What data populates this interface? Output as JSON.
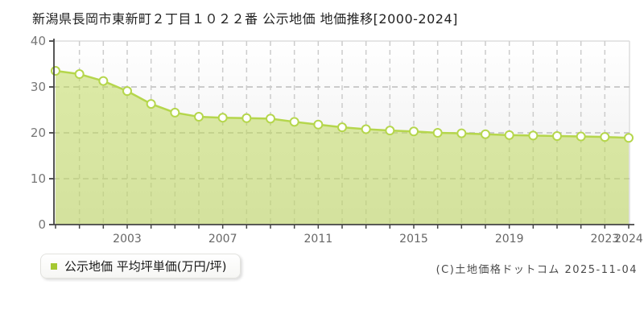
{
  "header": {
    "title": "新潟県長岡市東新町２丁目１０２２番 公示地価 地価推移[2000-2024]"
  },
  "legend": {
    "label": "公示地価 平均坪単価(万円/坪)",
    "marker_color": "#a5c832"
  },
  "footer": {
    "copyright": "(C)土地価格ドットコム 2025-11-04"
  },
  "colors": {
    "line": "#b5d64c",
    "area_fill": "rgba(187,216,80,0.5)",
    "marker_fill": "#ffffff",
    "grid": "#cccccc",
    "frame": "#dddddd",
    "axis": "#444444",
    "y_tick_label": "#777777",
    "x_tick_label": "#666666",
    "plot_bg_top": "#ffffff",
    "plot_bg_bottom": "#ececec"
  },
  "chart_data": {
    "type": "area",
    "title": "新潟県長岡市東新町２丁目１０２２番 公示地価 地価推移[2000-2024]",
    "x": [
      2000,
      2001,
      2002,
      2003,
      2004,
      2005,
      2006,
      2007,
      2008,
      2009,
      2010,
      2011,
      2012,
      2013,
      2014,
      2015,
      2016,
      2017,
      2018,
      2019,
      2020,
      2021,
      2022,
      2023,
      2024
    ],
    "series": [
      {
        "name": "公示地価 平均坪単価(万円/坪)",
        "values": [
          33.5,
          32.8,
          31.3,
          29.1,
          26.3,
          24.4,
          23.5,
          23.3,
          23.2,
          23.1,
          22.4,
          21.8,
          21.2,
          20.8,
          20.5,
          20.3,
          20.0,
          19.9,
          19.7,
          19.5,
          19.4,
          19.3,
          19.2,
          19.1,
          18.9
        ]
      }
    ],
    "xlabel": "",
    "ylabel": "",
    "ylim": [
      0,
      40
    ],
    "yticks": [
      0,
      10,
      20,
      30,
      40
    ],
    "xtick_label_years": [
      2003,
      2007,
      2011,
      2015,
      2019,
      2023,
      2024
    ],
    "grid": true,
    "legend_position": "bottom-left"
  }
}
